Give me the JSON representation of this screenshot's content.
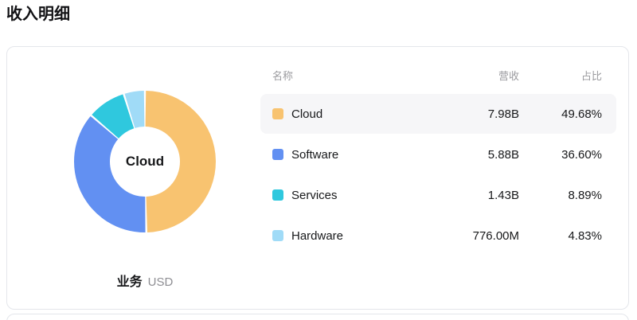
{
  "page_title": "收入明细",
  "colors": {
    "cloud": "#F8C370",
    "software": "#6290F2",
    "services": "#2FC8DE",
    "hardware": "#A0DBF7",
    "row_highlight": "#F6F6F8",
    "card_border": "#E4E6EB",
    "muted_text": "#9B9B9F"
  },
  "chart_data": {
    "type": "pie",
    "donut": true,
    "title": "收入明细",
    "center_label": "Cloud",
    "dimension_label": "业务",
    "unit_label": "USD",
    "legend_position": "right-table",
    "categories": [
      "Cloud",
      "Software",
      "Services",
      "Hardware"
    ],
    "series": [
      {
        "name": "营收",
        "values": [
          "7.98B",
          "5.88B",
          "1.43B",
          "776.00M"
        ]
      },
      {
        "name": "占比(%)",
        "values": [
          49.68,
          36.6,
          8.89,
          4.83
        ]
      }
    ],
    "colors": [
      "#F8C370",
      "#6290F2",
      "#2FC8DE",
      "#A0DBF7"
    ]
  },
  "table": {
    "headers": [
      "名称",
      "营收",
      "占比"
    ],
    "rows": [
      {
        "name": "Cloud",
        "revenue": "7.98B",
        "share": "49.68%",
        "color": "#F8C370",
        "highlighted": true
      },
      {
        "name": "Software",
        "revenue": "5.88B",
        "share": "36.60%",
        "color": "#6290F2",
        "highlighted": false
      },
      {
        "name": "Services",
        "revenue": "1.43B",
        "share": "8.89%",
        "color": "#2FC8DE",
        "highlighted": false
      },
      {
        "name": "Hardware",
        "revenue": "776.00M",
        "share": "4.83%",
        "color": "#A0DBF7",
        "highlighted": false
      }
    ]
  }
}
